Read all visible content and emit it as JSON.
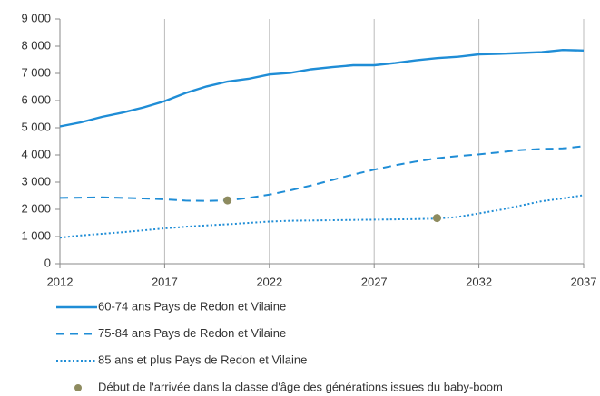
{
  "chart_data": {
    "type": "line",
    "x": [
      2012,
      2013,
      2014,
      2015,
      2016,
      2017,
      2018,
      2019,
      2020,
      2021,
      2022,
      2023,
      2024,
      2025,
      2026,
      2027,
      2028,
      2029,
      2030,
      2031,
      2032,
      2033,
      2034,
      2035,
      2036,
      2037
    ],
    "series": [
      {
        "name": "60-74 ans Pays de Redon et Vilaine",
        "color": "#1f8dd6",
        "dash": "solid",
        "values": [
          5050,
          5200,
          5400,
          5560,
          5750,
          5980,
          6280,
          6520,
          6700,
          6800,
          6960,
          7020,
          7150,
          7230,
          7300,
          7300,
          7380,
          7480,
          7560,
          7610,
          7700,
          7720,
          7750,
          7780,
          7860,
          7840
        ]
      },
      {
        "name": "75-84 ans Pays de Redon et Vilaine",
        "color": "#1f8dd6",
        "dash": "dashed",
        "values": [
          2420,
          2430,
          2440,
          2420,
          2400,
          2370,
          2320,
          2310,
          2330,
          2420,
          2540,
          2700,
          2880,
          3080,
          3280,
          3460,
          3620,
          3760,
          3880,
          3960,
          4020,
          4100,
          4180,
          4220,
          4240,
          4320
        ]
      },
      {
        "name": "85 ans et plus Pays de Redon et Vilaine",
        "color": "#1f8dd6",
        "dash": "dotted",
        "values": [
          960,
          1040,
          1100,
          1160,
          1230,
          1300,
          1360,
          1410,
          1450,
          1500,
          1550,
          1580,
          1590,
          1600,
          1610,
          1620,
          1630,
          1640,
          1660,
          1720,
          1850,
          1980,
          2140,
          2300,
          2400,
          2520
        ]
      }
    ],
    "markers": {
      "name": "Début de l'arrivée dans la classe d'âge des générations issues du baby-boom",
      "color": "#8e8b5f",
      "x": [
        2020,
        2030
      ],
      "values": [
        2330,
        1680
      ]
    },
    "xlim": [
      2012,
      2037
    ],
    "xticks": [
      2012,
      2017,
      2022,
      2027,
      2032,
      2037
    ],
    "ylim": [
      0,
      9000
    ],
    "yticks": [
      0,
      {
        "value": 1000,
        "label": "1 000"
      },
      {
        "value": 2000,
        "label": "2 000"
      },
      {
        "value": 3000,
        "label": "3 000"
      },
      {
        "value": 4000,
        "label": "4 000"
      },
      {
        "value": 5000,
        "label": "5 000"
      },
      {
        "value": 6000,
        "label": "6 000"
      },
      {
        "value": 7000,
        "label": "7 000"
      },
      {
        "value": 8000,
        "label": "8 000"
      },
      {
        "value": 9000,
        "label": "9 000"
      }
    ],
    "grid": "x"
  }
}
